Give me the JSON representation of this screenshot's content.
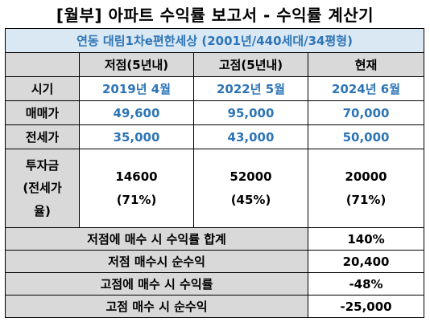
{
  "title": "[월부] 아파트 수익률 보고서 - 수익률 계산기",
  "subtitle": "연동 대림1차e편한세상 (2001년/440세대/34평형)",
  "columns": [
    "",
    "저점(5년내)",
    "고점(5년내)",
    "현재"
  ],
  "rows": [
    {
      "label": "시기",
      "values": [
        "2019년 4월",
        "2022년 5월",
        "2024년 6월"
      ]
    },
    {
      "label": "매매가",
      "values": [
        "49,600",
        "95,000",
        "70,000"
      ]
    },
    {
      "label": "전세가",
      "values": [
        "35,000",
        "43,000",
        "50,000"
      ]
    }
  ],
  "investment": {
    "label_lines": [
      "투자금",
      "(전세가",
      "율)"
    ],
    "values": [
      {
        "amount": "14600",
        "ratio": "(71%)"
      },
      {
        "amount": "52000",
        "ratio": "(45%)"
      },
      {
        "amount": "20000",
        "ratio": "(71%)"
      }
    ]
  },
  "summary": [
    {
      "label": "저점에 매수 시 수익률 합계",
      "value": "140%"
    },
    {
      "label": "저점 매수시 순수익",
      "value": "20,400"
    },
    {
      "label": "고점에 매수 시 수익률",
      "value": "-48%"
    },
    {
      "label": "고점 매수 시 순수익",
      "value": "-25,000"
    }
  ]
}
